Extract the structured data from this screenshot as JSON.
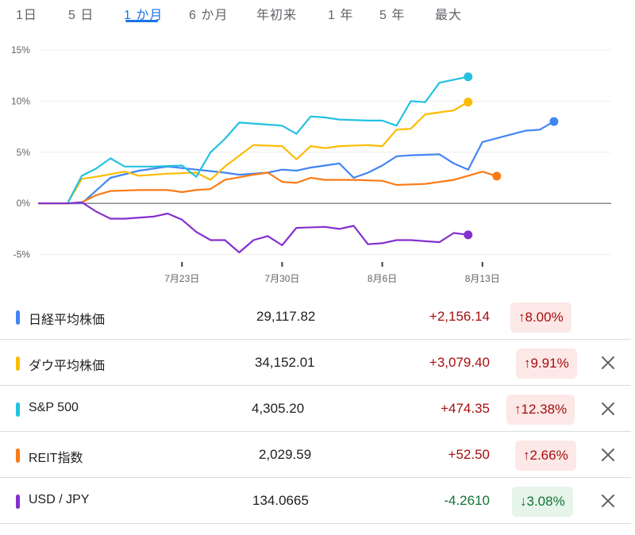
{
  "tabs": [
    {
      "label": "1日"
    },
    {
      "label": "5 日"
    },
    {
      "label": "1 か月"
    },
    {
      "label": "6 か月"
    },
    {
      "label": "年初来"
    },
    {
      "label": "1 年"
    },
    {
      "label": "5 年"
    },
    {
      "label": "最大"
    }
  ],
  "active_tab": "1 か月",
  "colors": {
    "accent": "#1a73e8",
    "up": "#a50e0e",
    "down": "#137333",
    "up_bg": "#fce8e6",
    "down_bg": "#e6f4ea"
  },
  "chart_data": {
    "type": "line",
    "x": [
      "07-14",
      "07-15",
      "07-16",
      "07-17",
      "07-18",
      "07-19",
      "07-20",
      "07-21",
      "07-22",
      "07-23",
      "07-24",
      "07-25",
      "07-26",
      "07-27",
      "07-28",
      "07-29",
      "07-30",
      "07-31",
      "08-01",
      "08-02",
      "08-03",
      "08-04",
      "08-05",
      "08-06",
      "08-07",
      "08-08",
      "08-09",
      "08-10",
      "08-11",
      "08-12",
      "08-13",
      "08-14",
      "08-15",
      "08-16",
      "08-17",
      "08-18",
      "08-19",
      "08-20",
      "08-21",
      "08-22"
    ],
    "xticks": [
      {
        "x": "07-23",
        "label": "7月23日"
      },
      {
        "x": "07-30",
        "label": "7月30日"
      },
      {
        "x": "08-06",
        "label": "8月6日"
      },
      {
        "x": "08-13",
        "label": "8月13日"
      }
    ],
    "yticks": [
      -5,
      0,
      5,
      10,
      15
    ],
    "ytick_labels": [
      "-5%",
      "0%",
      "5%",
      "10%",
      "15%"
    ],
    "ylim": [
      -5.5,
      15
    ],
    "xlim": [
      "07-13",
      "08-22"
    ],
    "grid": true,
    "series": [
      {
        "name": "日経平均株価",
        "color": "#4285f4",
        "points": [
          [
            "07-13",
            0
          ],
          [
            "07-14",
            0
          ],
          [
            "07-16",
            0
          ],
          [
            "07-18",
            2.5
          ],
          [
            "07-20",
            3.2
          ],
          [
            "07-22",
            3.6
          ],
          [
            "07-24",
            3.3
          ],
          [
            "07-26",
            3.0
          ],
          [
            "07-27",
            2.8
          ],
          [
            "07-29",
            3.0
          ],
          [
            "07-30",
            3.3
          ],
          [
            "07-31",
            3.2
          ],
          [
            "08-01",
            3.5
          ],
          [
            "08-03",
            3.9
          ],
          [
            "08-04",
            2.5
          ],
          [
            "08-05",
            3.0
          ],
          [
            "08-06",
            3.7
          ],
          [
            "08-07",
            4.6
          ],
          [
            "08-08",
            4.7
          ],
          [
            "08-10",
            4.8
          ],
          [
            "08-11",
            3.9
          ],
          [
            "08-12",
            3.3
          ],
          [
            "08-13",
            6.0
          ],
          [
            "08-16",
            7.1
          ],
          [
            "08-17",
            7.2
          ],
          [
            "08-18",
            8.0
          ]
        ]
      },
      {
        "name": "ダウ平均株価",
        "color": "#fbbc04",
        "points": [
          [
            "07-13",
            0
          ],
          [
            "07-14",
            0
          ],
          [
            "07-15",
            0
          ],
          [
            "07-16",
            2.4
          ],
          [
            "07-17",
            2.6
          ],
          [
            "07-19",
            3.1
          ],
          [
            "07-20",
            2.7
          ],
          [
            "07-22",
            2.9
          ],
          [
            "07-24",
            3.0
          ],
          [
            "07-25",
            2.3
          ],
          [
            "07-26",
            3.6
          ],
          [
            "07-28",
            5.7
          ],
          [
            "07-30",
            5.6
          ],
          [
            "07-31",
            4.3
          ],
          [
            "08-01",
            5.6
          ],
          [
            "08-02",
            5.4
          ],
          [
            "08-03",
            5.6
          ],
          [
            "08-05",
            5.7
          ],
          [
            "08-06",
            5.6
          ],
          [
            "08-07",
            7.2
          ],
          [
            "08-08",
            7.3
          ],
          [
            "08-09",
            8.7
          ],
          [
            "08-11",
            9.1
          ],
          [
            "08-12",
            9.91
          ]
        ]
      },
      {
        "name": "S&P 500",
        "color": "#24c1e0",
        "points": [
          [
            "07-13",
            0
          ],
          [
            "07-14",
            0
          ],
          [
            "07-15",
            0
          ],
          [
            "07-16",
            2.7
          ],
          [
            "07-17",
            3.4
          ],
          [
            "07-18",
            4.4
          ],
          [
            "07-19",
            3.6
          ],
          [
            "07-21",
            3.6
          ],
          [
            "07-23",
            3.7
          ],
          [
            "07-24",
            2.6
          ],
          [
            "07-25",
            5.0
          ],
          [
            "07-26",
            6.3
          ],
          [
            "07-27",
            7.9
          ],
          [
            "07-29",
            7.7
          ],
          [
            "07-30",
            7.6
          ],
          [
            "07-31",
            6.8
          ],
          [
            "08-01",
            8.5
          ],
          [
            "08-02",
            8.4
          ],
          [
            "08-03",
            8.2
          ],
          [
            "08-05",
            8.1
          ],
          [
            "08-06",
            8.1
          ],
          [
            "08-07",
            7.6
          ],
          [
            "08-08",
            10.0
          ],
          [
            "08-09",
            9.9
          ],
          [
            "08-10",
            11.8
          ],
          [
            "08-12",
            12.38
          ]
        ]
      },
      {
        "name": "REIT指数",
        "color": "#fa7b17",
        "points": [
          [
            "07-13",
            0
          ],
          [
            "07-14",
            0
          ],
          [
            "07-15",
            0
          ],
          [
            "07-16",
            0.1
          ],
          [
            "07-17",
            0.8
          ],
          [
            "07-18",
            1.2
          ],
          [
            "07-20",
            1.3
          ],
          [
            "07-22",
            1.3
          ],
          [
            "07-23",
            1.1
          ],
          [
            "07-24",
            1.3
          ],
          [
            "07-25",
            1.4
          ],
          [
            "07-26",
            2.3
          ],
          [
            "07-28",
            2.8
          ],
          [
            "07-29",
            3.0
          ],
          [
            "07-30",
            2.1
          ],
          [
            "07-31",
            2.0
          ],
          [
            "08-01",
            2.5
          ],
          [
            "08-02",
            2.3
          ],
          [
            "08-04",
            2.3
          ],
          [
            "08-06",
            2.2
          ],
          [
            "08-07",
            1.8
          ],
          [
            "08-09",
            1.9
          ],
          [
            "08-11",
            2.3
          ],
          [
            "08-12",
            2.7
          ],
          [
            "08-13",
            3.1
          ],
          [
            "08-14",
            2.66
          ]
        ]
      },
      {
        "name": "USD / JPY",
        "color": "#8430ce",
        "points": [
          [
            "07-13",
            0
          ],
          [
            "07-14",
            0
          ],
          [
            "07-15",
            0
          ],
          [
            "07-16",
            0.1
          ],
          [
            "07-17",
            -0.8
          ],
          [
            "07-18",
            -1.5
          ],
          [
            "07-19",
            -1.5
          ],
          [
            "07-21",
            -1.3
          ],
          [
            "07-22",
            -1.0
          ],
          [
            "07-23",
            -1.6
          ],
          [
            "07-24",
            -2.8
          ],
          [
            "07-25",
            -3.6
          ],
          [
            "07-26",
            -3.6
          ],
          [
            "07-27",
            -4.8
          ],
          [
            "07-28",
            -3.6
          ],
          [
            "07-29",
            -3.2
          ],
          [
            "07-30",
            -4.1
          ],
          [
            "07-31",
            -2.4
          ],
          [
            "08-02",
            -2.3
          ],
          [
            "08-03",
            -2.5
          ],
          [
            "08-04",
            -2.2
          ],
          [
            "08-05",
            -4.0
          ],
          [
            "08-06",
            -3.9
          ],
          [
            "08-07",
            -3.6
          ],
          [
            "08-08",
            -3.6
          ],
          [
            "08-10",
            -3.8
          ],
          [
            "08-11",
            -2.9
          ],
          [
            "08-12",
            -3.08
          ]
        ]
      }
    ]
  },
  "rows": [
    {
      "name": "日経平均株価",
      "price": "29,117.82",
      "change": "+2,156.14",
      "pct": "8.00%",
      "direction": "up",
      "color": "#4285f4",
      "removable": false
    },
    {
      "name": "ダウ平均株価",
      "price": "34,152.01",
      "change": "+3,079.40",
      "pct": "9.91%",
      "direction": "up",
      "color": "#fbbc04",
      "removable": true
    },
    {
      "name": "S&P 500",
      "price": "4,305.20",
      "change": "+474.35",
      "pct": "12.38%",
      "direction": "up",
      "color": "#24c1e0",
      "removable": true
    },
    {
      "name": "REIT指数",
      "price": "2,029.59",
      "change": "+52.50",
      "pct": "2.66%",
      "direction": "up",
      "color": "#fa7b17",
      "removable": true
    },
    {
      "name": "USD / JPY",
      "price": "134.0665",
      "change": "-4.2610",
      "pct": "3.08%",
      "direction": "down",
      "color": "#8430ce",
      "removable": true
    }
  ]
}
